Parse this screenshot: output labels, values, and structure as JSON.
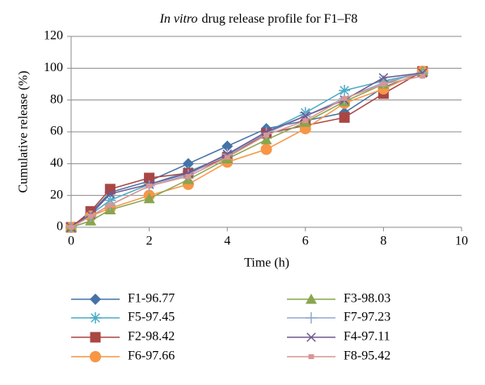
{
  "chart_data": {
    "type": "line",
    "title_prefix": "In vitro",
    "title": "drug release profile for F1–F8",
    "x_label": "Time (h)",
    "y_label": "Cumulative release (%)",
    "x": [
      0,
      0.5,
      1,
      2,
      3,
      4,
      5,
      6,
      7,
      8,
      9
    ],
    "xlim": [
      0,
      10
    ],
    "xticks": [
      0,
      2,
      4,
      6,
      8,
      10
    ],
    "ylim": [
      0,
      120
    ],
    "yticks": [
      0,
      20,
      40,
      60,
      80,
      100,
      120
    ],
    "grid": true,
    "series": [
      {
        "name": "F1-96.77",
        "color": "#4572a7",
        "marker": "diamond",
        "values": [
          0,
          9,
          22,
          29,
          40,
          51,
          62,
          67,
          72,
          88,
          97
        ]
      },
      {
        "name": "F5-97.45",
        "color": "#4bacc6",
        "marker": "star",
        "values": [
          0,
          8,
          17,
          27,
          35,
          45,
          60,
          72,
          86,
          92,
          97
        ]
      },
      {
        "name": "F2-98.42",
        "color": "#aa4643",
        "marker": "square",
        "values": [
          0,
          10,
          24,
          31,
          34,
          44,
          59,
          64,
          69,
          84,
          98
        ]
      },
      {
        "name": "F6-97.66",
        "color": "#f79646",
        "marker": "circle",
        "values": [
          0,
          7,
          12,
          20,
          27,
          41,
          49,
          62,
          78,
          87,
          98
        ]
      },
      {
        "name": "F3-98.03",
        "color": "#89a54e",
        "marker": "triangle",
        "values": [
          0,
          4,
          11,
          18,
          30,
          43,
          55,
          66,
          79,
          90,
          98
        ]
      },
      {
        "name": "F7-97.23",
        "color": "#93a9cf",
        "marker": "plus",
        "values": [
          0,
          7,
          14,
          26,
          33,
          46,
          59,
          70,
          81,
          91,
          97
        ]
      },
      {
        "name": "F4-97.11",
        "color": "#71588f",
        "marker": "x",
        "values": [
          0,
          8,
          21,
          27,
          34,
          46,
          60,
          70,
          80,
          94,
          97
        ]
      },
      {
        "name": "F8-95.42",
        "color": "#d99694",
        "marker": "smallsquare",
        "values": [
          0,
          7,
          14,
          26,
          32,
          44,
          58,
          67,
          81,
          90,
          95
        ]
      }
    ]
  }
}
